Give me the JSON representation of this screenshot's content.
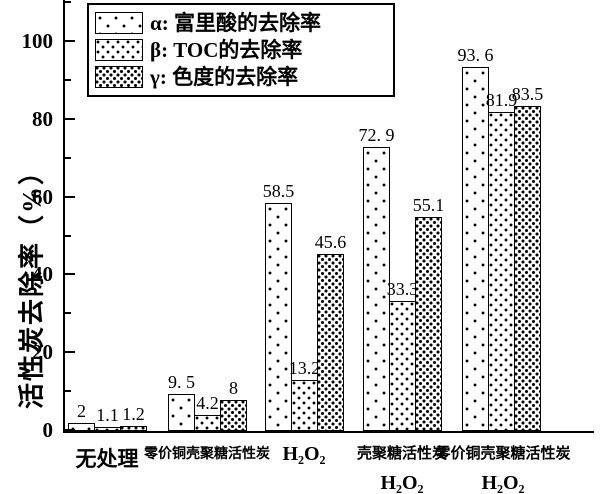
{
  "colors": {
    "ink": "#000000",
    "paper": "#ffffff"
  },
  "legend": {
    "items": [
      {
        "label": "α: 富里酸的去除率",
        "pattern": "sparse-dots"
      },
      {
        "label": "β: TOC的去除率",
        "pattern": "medium-dots"
      },
      {
        "label": "γ: 色度的去除率",
        "pattern": "dense-dots"
      }
    ]
  },
  "chart_data": {
    "type": "bar",
    "title": "",
    "xlabel": "",
    "ylabel": "活性炭去除率（%）",
    "ylim": [
      0,
      110.8
    ],
    "yticks_major": [
      0,
      20,
      40,
      60,
      80,
      100
    ],
    "yticks_minor": [
      10,
      30,
      50,
      70,
      90,
      110
    ],
    "grid": false,
    "legend_position": "top-left",
    "categories": [
      {
        "line1": "无处理",
        "line2": ""
      },
      {
        "line1": "零价铜壳聚糖活性炭",
        "line2": ""
      },
      {
        "line1": "H₂O₂",
        "line2": ""
      },
      {
        "line1": "壳聚糖活性炭",
        "line2": "H₂O₂"
      },
      {
        "line1": "零价铜壳聚糖活性炭",
        "line2": "H₂O₂"
      }
    ],
    "series": [
      {
        "name": "α: 富里酸的去除率",
        "pattern": "sparse-dots",
        "values": [
          2,
          9.5,
          58.5,
          72.9,
          93.6
        ],
        "labels": [
          "2",
          "9. 5",
          "58.5",
          "72. 9",
          "93. 6"
        ]
      },
      {
        "name": "β: TOC的去除率",
        "pattern": "medium-dots",
        "values": [
          1.1,
          4.2,
          13.2,
          33.3,
          81.9
        ],
        "labels": [
          "1.1",
          "4.2",
          "13.2",
          "33.3",
          "81.9"
        ]
      },
      {
        "name": "γ: 色度的去除率",
        "pattern": "dense-dots",
        "values": [
          1.2,
          8,
          45.6,
          55.1,
          83.5
        ],
        "labels": [
          "1.2",
          "8",
          "45.6",
          "55.1",
          "83.5"
        ]
      }
    ]
  }
}
